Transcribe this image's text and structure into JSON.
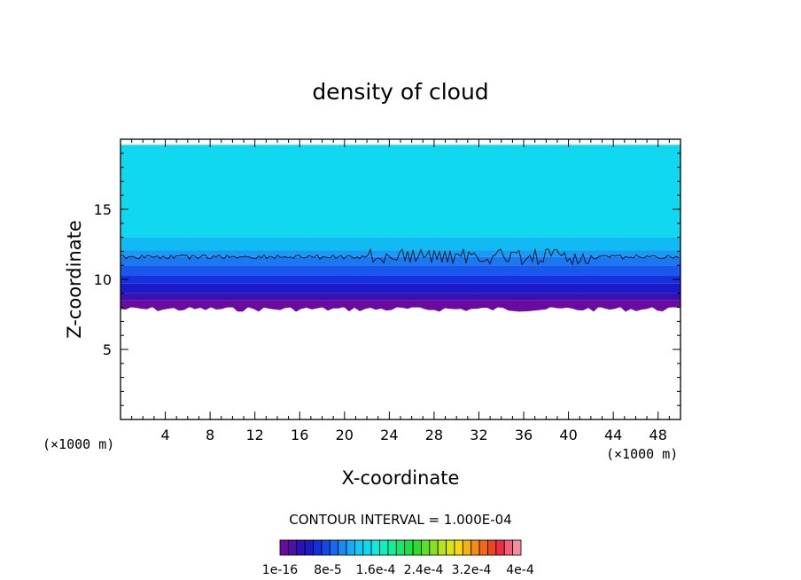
{
  "chart_data": {
    "type": "heatmap",
    "title": "density of cloud",
    "xlabel": "X-coordinate",
    "ylabel": "Z-coordinate",
    "x_unit": "(×1000 m)",
    "z_unit": "(×1000 m)",
    "xlim": [
      0,
      50
    ],
    "ylim": [
      0,
      20
    ],
    "x_ticks": [
      4,
      8,
      12,
      16,
      20,
      24,
      28,
      32,
      36,
      40,
      44,
      48
    ],
    "y_ticks": [
      5,
      10,
      15
    ],
    "contour_interval_label": "CONTOUR INTERVAL = 1.000E-04",
    "colorbar": {
      "labels": [
        "1e-16",
        "8e-5",
        "1.6e-4",
        "2.4e-4",
        "3.2e-4",
        "4e-4"
      ],
      "colors": [
        "#6a0aa0",
        "#4a10a8",
        "#2e10b8",
        "#1a1ac8",
        "#1530d8",
        "#1648e8",
        "#1868f0",
        "#1a8af2",
        "#1aaaf4",
        "#12c8f4",
        "#10d8f0",
        "#10e8e0",
        "#10eec0",
        "#10ee9a",
        "#14e870",
        "#1ae050",
        "#30dc2a",
        "#5ae028",
        "#88e022",
        "#b4e41a",
        "#dce410",
        "#f4d810",
        "#f4b410",
        "#f48c10",
        "#f06818",
        "#ec4420",
        "#ea3040",
        "#f06078",
        "#f48ca0"
      ]
    },
    "layers_z": [
      {
        "z_range": [
          8.0,
          8.5
        ],
        "color": "#6a0aa0"
      },
      {
        "z_range": [
          8.5,
          9.0
        ],
        "color": "#3a10b0"
      },
      {
        "z_range": [
          9.0,
          9.7
        ],
        "color": "#1a1ac8"
      },
      {
        "z_range": [
          9.7,
          10.3
        ],
        "color": "#1632e0"
      },
      {
        "z_range": [
          10.3,
          11.0
        ],
        "color": "#1858ec"
      },
      {
        "z_range": [
          11.0,
          11.6
        ],
        "color": "#1a78f0"
      },
      {
        "z_range": [
          11.6,
          12.3
        ],
        "color": "#1a9af2"
      },
      {
        "z_range": [
          12.3,
          13.0
        ],
        "color": "#12baf4"
      },
      {
        "z_range": [
          13.0,
          19.6
        ],
        "color": "#10d8f0"
      }
    ],
    "contour_level_z": 11.6
  }
}
